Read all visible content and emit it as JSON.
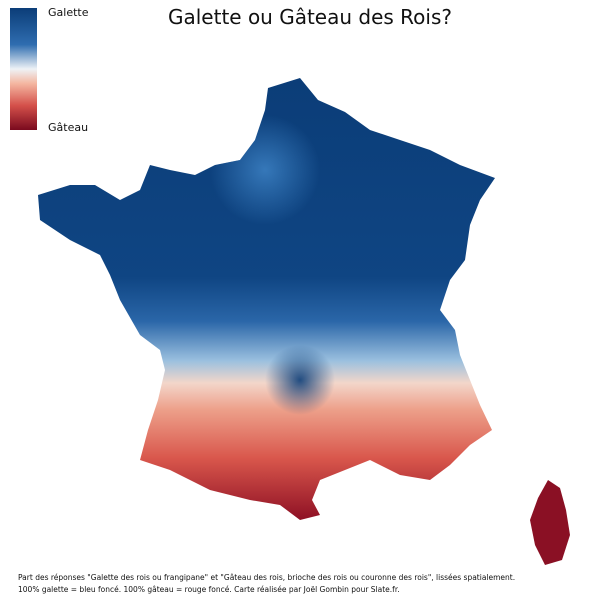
{
  "title": "Galette ou Gâteau des Rois?",
  "legend": {
    "top_label": "Galette",
    "bottom_label": "Gâteau"
  },
  "footnote": [
    "Part des réponses \"Galette des rois ou frangipane\" et \"Gâteau des rois, brioche des rois ou couronne des rois\", lissées spatialement.",
    "100% galette = bleu foncé. 100% gâteau = rouge foncé. Carte réalisée par Joël Gombin pour Slate.fr."
  ]
}
